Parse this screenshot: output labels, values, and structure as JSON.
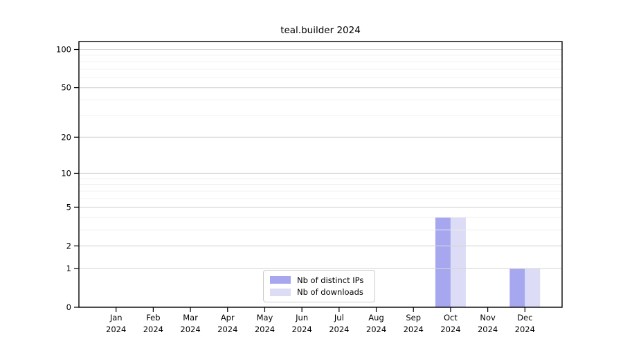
{
  "chart_data": {
    "type": "bar",
    "title": "teal.builder 2024",
    "categories": [
      {
        "month": "Jan",
        "year": "2024"
      },
      {
        "month": "Feb",
        "year": "2024"
      },
      {
        "month": "Mar",
        "year": "2024"
      },
      {
        "month": "Apr",
        "year": "2024"
      },
      {
        "month": "May",
        "year": "2024"
      },
      {
        "month": "Jun",
        "year": "2024"
      },
      {
        "month": "Jul",
        "year": "2024"
      },
      {
        "month": "Aug",
        "year": "2024"
      },
      {
        "month": "Sep",
        "year": "2024"
      },
      {
        "month": "Oct",
        "year": "2024"
      },
      {
        "month": "Nov",
        "year": "2024"
      },
      {
        "month": "Dec",
        "year": "2024"
      }
    ],
    "series": [
      {
        "name": "Nb of distinct IPs",
        "color": "#a7a7f0",
        "values": [
          0,
          0,
          0,
          0,
          0,
          0,
          0,
          0,
          0,
          4,
          0,
          1
        ]
      },
      {
        "name": "Nb of downloads",
        "color": "#dcdcf7",
        "values": [
          0,
          0,
          0,
          0,
          0,
          0,
          0,
          0,
          0,
          4,
          0,
          1
        ]
      }
    ],
    "y_axis": {
      "scale": "log1p",
      "major_ticks": [
        0,
        1,
        2,
        5,
        10,
        20,
        50,
        100
      ],
      "minor_gridlines": [
        3,
        4,
        6,
        7,
        8,
        9,
        30,
        40,
        60,
        70,
        80,
        90
      ],
      "range": [
        0,
        115
      ]
    },
    "xlabel": "",
    "ylabel": "",
    "legend_position": "inside-bottom-center",
    "grid": "horizontal-major-and-minor",
    "colors": {
      "major_grid": "#d6d6d6",
      "minor_grid": "#ededed",
      "spine": "#000000",
      "text": "#000000"
    }
  }
}
